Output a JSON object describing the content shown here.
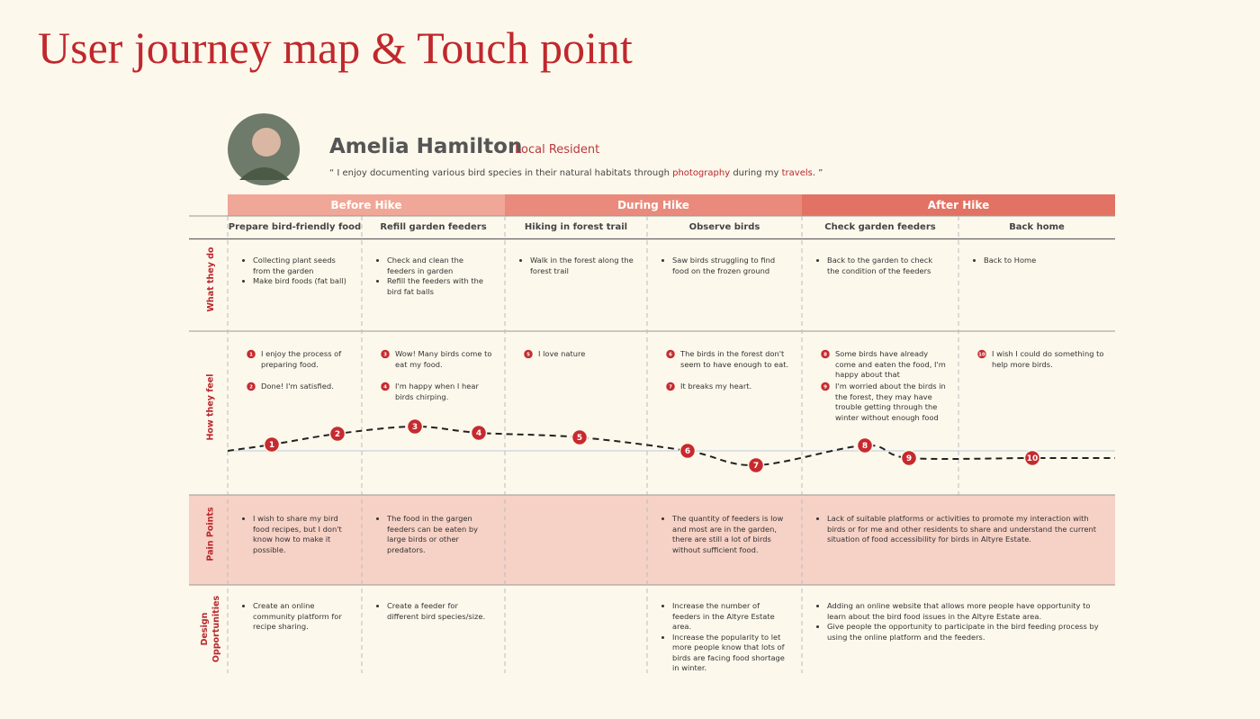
{
  "title": "User journey map & Touch point",
  "persona": {
    "name": "Amelia Hamilton",
    "role": "Local Resident",
    "quote": [
      "“ I enjoy documenting various bird species in their natural habitats through ",
      "photography",
      " during my ",
      "travels",
      ". ”"
    ]
  },
  "stages": [
    "Before Hike",
    "During Hike",
    "After Hike"
  ],
  "steps": [
    "Prepare bird-friendly food",
    "Refill garden feeders",
    "Hiking in forest trail",
    "Observe birds",
    "Check garden feeders",
    "Back home"
  ],
  "row_labels": [
    "What they do",
    "How they feel",
    "Pain Points",
    "Design Opportunities"
  ],
  "what_they_do": [
    [
      "Collecting plant seeds from the garden",
      "Make bird foods (fat ball)"
    ],
    [
      "Check and clean the feeders in garden",
      "Refill the feeders with the bird fat balls"
    ],
    [
      "Walk in the forest along the forest trail"
    ],
    [
      "Saw birds struggling to find food on the frozen ground"
    ],
    [
      "Back to the garden to check the condition of the feeders"
    ],
    [
      "Back to Home"
    ]
  ],
  "how_they_feel": [
    [
      {
        "number": 1,
        "text": "I enjoy the process of preparing food."
      },
      {
        "number": 2,
        "text": "Done! I'm satisfied."
      }
    ],
    [
      {
        "number": 3,
        "text": "Wow! Many birds come to eat my food."
      },
      {
        "number": 4,
        "text": "I'm happy when I hear birds chirping."
      }
    ],
    [
      {
        "number": 5,
        "text": "I love nature"
      }
    ],
    [
      {
        "number": 6,
        "text": "The birds in the forest don't seem to have enough to eat."
      },
      {
        "number": 7,
        "text": "It breaks my heart."
      }
    ],
    [
      {
        "number": 8,
        "text": "Some birds have already come and eaten the food, I'm happy about that"
      },
      {
        "number": 9,
        "text": "I'm worried about the birds in the forest, they may have trouble getting through the winter without enough food"
      }
    ],
    [
      {
        "number": 10,
        "text": "I wish I could do something to help more birds."
      }
    ]
  ],
  "pain_points": [
    [
      "I wish to share my bird food recipes, but I don't know how to make it possible."
    ],
    [
      "The food in the gargen feeders can be eaten by large birds or other predators."
    ],
    [],
    [
      "The quantity of feeders is low and most are in the garden, there are still a lot of birds without sufficient food."
    ],
    [
      "Lack of suitable platforms or activities to promote my interaction with birds or for me and other residents to share and understand the current situation of food accessibility for birds in Altyre Estate."
    ]
  ],
  "design_opportunities": [
    [
      "Create an online community platform for recipe sharing."
    ],
    [
      "Create a feeder for different bird species/size."
    ],
    [],
    [
      "Increase the number of feeders in the Altyre Estate area.",
      "Increase the popularity to let more people know that lots of birds are facing food shortage in winter."
    ],
    [
      "Adding an online website that allows more people have opportunity to learn about the bird food issues in the Altyre Estate area.",
      "Give people the opportunity to participate in the bird feeding process by using the online platform and the feeders."
    ]
  ]
}
